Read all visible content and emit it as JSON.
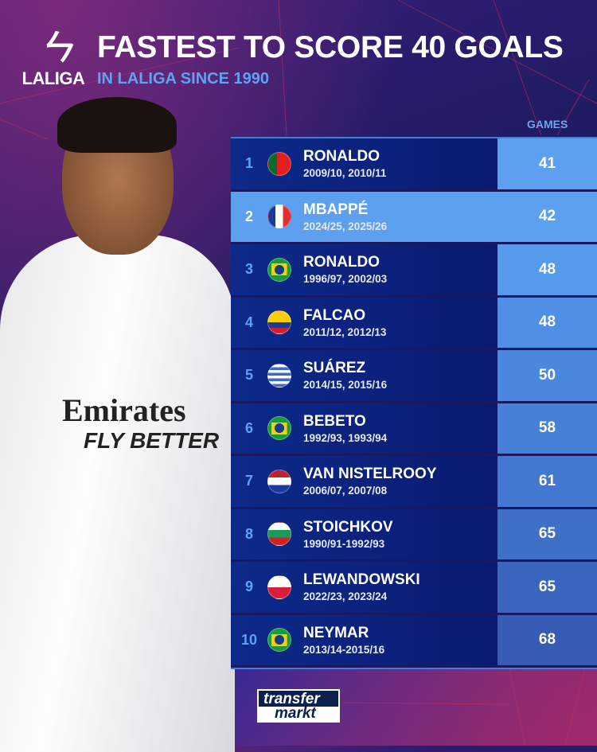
{
  "brand": {
    "logo_text": "LALIGA",
    "source_logo_text": "transfermarkt"
  },
  "header": {
    "title": "FASTEST TO SCORE 40 GOALS",
    "subtitle": "IN LALIGA SINCE 1990"
  },
  "table": {
    "column_header": "GAMES",
    "highlight_rank": "2",
    "rows": [
      {
        "rank": "1",
        "flag": "pt",
        "name": "RONALDO",
        "seasons": "2009/10, 2010/11",
        "games": "41"
      },
      {
        "rank": "2",
        "flag": "fr",
        "name": "MBAPPÉ",
        "seasons": "2024/25, 2025/26",
        "games": "42"
      },
      {
        "rank": "3",
        "flag": "br",
        "name": "RONALDO",
        "seasons": "1996/97, 2002/03",
        "games": "48"
      },
      {
        "rank": "4",
        "flag": "co",
        "name": "FALCAO",
        "seasons": "2011/12, 2012/13",
        "games": "48"
      },
      {
        "rank": "5",
        "flag": "uy",
        "name": "SUÁREZ",
        "seasons": "2014/15, 2015/16",
        "games": "50"
      },
      {
        "rank": "6",
        "flag": "br",
        "name": "BEBETO",
        "seasons": "1992/93, 1993/94",
        "games": "58"
      },
      {
        "rank": "7",
        "flag": "nl",
        "name": "VAN NISTELROOY",
        "seasons": "2006/07, 2007/08",
        "games": "61"
      },
      {
        "rank": "8",
        "flag": "bg",
        "name": "STOICHKOV",
        "seasons": "1990/91-1992/93",
        "games": "65"
      },
      {
        "rank": "9",
        "flag": "pl",
        "name": "LEWANDOWSKI",
        "seasons": "2022/23, 2023/24",
        "games": "65"
      },
      {
        "rank": "10",
        "flag": "br",
        "name": "NEYMAR",
        "seasons": "2013/14-2015/16",
        "games": "68"
      }
    ]
  },
  "player_jersey": {
    "sponsor_line1": "Emirates",
    "sponsor_line2": "FLY BETTER"
  },
  "colors": {
    "highlight": "#5ea0f0",
    "name_bg": "#0d2a8a",
    "accent_text": "#5fa2f2"
  }
}
